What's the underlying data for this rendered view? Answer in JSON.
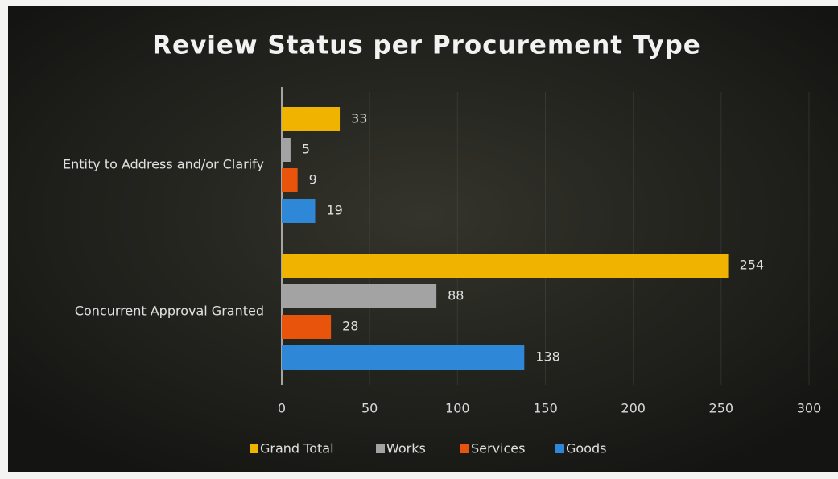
{
  "chart_data": {
    "type": "bar",
    "orientation": "horizontal",
    "title": "Review Status per Procurement Type",
    "categories": [
      "Entity to Address and/or Clarify",
      "Concurrent Approval Granted"
    ],
    "series": [
      {
        "name": "Grand Total",
        "color": "#f0b400",
        "values": [
          33,
          254
        ]
      },
      {
        "name": "Works",
        "color": "#a3a3a3",
        "values": [
          5,
          88
        ]
      },
      {
        "name": "Services",
        "color": "#e8540c",
        "values": [
          9,
          28
        ]
      },
      {
        "name": "Goods",
        "color": "#2f87d8",
        "values": [
          19,
          138
        ]
      }
    ],
    "xlim": [
      0,
      300
    ],
    "xticks": [
      0,
      50,
      100,
      150,
      200,
      250,
      300
    ],
    "grid": true,
    "legend": "bottom"
  }
}
